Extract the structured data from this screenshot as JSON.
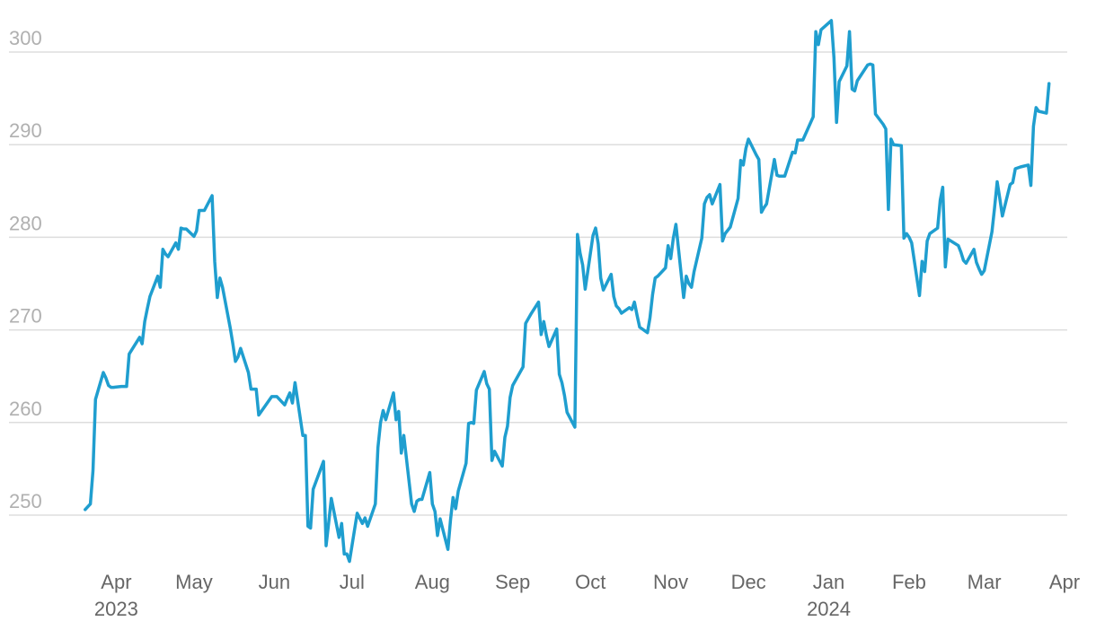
{
  "chart_data": {
    "type": "line",
    "title": "",
    "xlabel": "",
    "ylabel": "",
    "ylim": [
      244,
      304
    ],
    "xlim": [
      "2023-03-01",
      "2024-04-01"
    ],
    "grid": true,
    "legend": "none",
    "y_ticks": [
      250,
      260,
      270,
      280,
      290,
      300
    ],
    "x_ticks": [
      {
        "date": "2023-04-01",
        "label": "Apr",
        "year": "2023"
      },
      {
        "date": "2023-05-01",
        "label": "May",
        "year": ""
      },
      {
        "date": "2023-06-01",
        "label": "Jun",
        "year": ""
      },
      {
        "date": "2023-07-01",
        "label": "Jul",
        "year": ""
      },
      {
        "date": "2023-08-01",
        "label": "Aug",
        "year": ""
      },
      {
        "date": "2023-09-01",
        "label": "Sep",
        "year": ""
      },
      {
        "date": "2023-10-01",
        "label": "Oct",
        "year": ""
      },
      {
        "date": "2023-11-01",
        "label": "Nov",
        "year": ""
      },
      {
        "date": "2023-12-01",
        "label": "Dec",
        "year": ""
      },
      {
        "date": "2024-01-01",
        "label": "Jan",
        "year": "2024"
      },
      {
        "date": "2024-02-01",
        "label": "Feb",
        "year": ""
      },
      {
        "date": "2024-03-01",
        "label": "Mar",
        "year": ""
      },
      {
        "date": "2024-04-01",
        "label": "Apr",
        "year": ""
      }
    ],
    "series": [
      {
        "color": "#1f9ecf",
        "x": [
          "2023-03-20",
          "2023-03-22",
          "2023-03-23",
          "2023-03-24",
          "2023-03-27",
          "2023-03-28",
          "2023-03-29",
          "2023-03-30",
          "2023-03-31",
          "2023-04-03",
          "2023-04-04",
          "2023-04-05",
          "2023-04-06",
          "2023-04-10",
          "2023-04-11",
          "2023-04-12",
          "2023-04-13",
          "2023-04-14",
          "2023-04-17",
          "2023-04-18",
          "2023-04-19",
          "2023-04-20",
          "2023-04-21",
          "2023-04-24",
          "2023-04-25",
          "2023-04-26",
          "2023-04-27",
          "2023-04-28",
          "2023-05-01",
          "2023-05-02",
          "2023-05-03",
          "2023-05-04",
          "2023-05-05",
          "2023-05-08",
          "2023-05-09",
          "2023-05-10",
          "2023-05-11",
          "2023-05-12",
          "2023-05-15",
          "2023-05-16",
          "2023-05-17",
          "2023-05-18",
          "2023-05-19",
          "2023-05-22",
          "2023-05-23",
          "2023-05-24",
          "2023-05-25",
          "2023-05-26",
          "2023-05-30",
          "2023-05-31",
          "2023-06-01",
          "2023-06-02",
          "2023-06-05",
          "2023-06-06",
          "2023-06-07",
          "2023-06-08",
          "2023-06-09",
          "2023-06-12",
          "2023-06-13",
          "2023-06-14",
          "2023-06-15",
          "2023-06-16",
          "2023-06-20",
          "2023-06-21",
          "2023-06-22",
          "2023-06-23",
          "2023-06-26",
          "2023-06-27",
          "2023-06-28",
          "2023-06-29",
          "2023-06-30",
          "2023-07-03",
          "2023-07-05",
          "2023-07-06",
          "2023-07-07",
          "2023-07-10",
          "2023-07-11",
          "2023-07-12",
          "2023-07-13",
          "2023-07-14",
          "2023-07-17",
          "2023-07-18",
          "2023-07-19",
          "2023-07-20",
          "2023-07-21",
          "2023-07-24",
          "2023-07-25",
          "2023-07-26",
          "2023-07-27",
          "2023-07-28",
          "2023-07-31",
          "2023-08-01",
          "2023-08-02",
          "2023-08-03",
          "2023-08-04",
          "2023-08-07",
          "2023-08-08",
          "2023-08-09",
          "2023-08-10",
          "2023-08-11",
          "2023-08-14",
          "2023-08-15",
          "2023-08-16",
          "2023-08-17",
          "2023-08-18",
          "2023-08-21",
          "2023-08-22",
          "2023-08-23",
          "2023-08-24",
          "2023-08-25",
          "2023-08-28",
          "2023-08-29",
          "2023-08-30",
          "2023-08-31",
          "2023-09-01",
          "2023-09-05",
          "2023-09-06",
          "2023-09-07",
          "2023-09-08",
          "2023-09-11",
          "2023-09-12",
          "2023-09-13",
          "2023-09-14",
          "2023-09-15",
          "2023-09-18",
          "2023-09-19",
          "2023-09-20",
          "2023-09-21",
          "2023-09-22",
          "2023-09-25",
          "2023-09-26",
          "2023-09-27",
          "2023-09-28",
          "2023-09-29",
          "2023-10-02",
          "2023-10-03",
          "2023-10-04",
          "2023-10-05",
          "2023-10-06",
          "2023-10-09",
          "2023-10-10",
          "2023-10-11",
          "2023-10-12",
          "2023-10-13",
          "2023-10-16",
          "2023-10-17",
          "2023-10-18",
          "2023-10-19",
          "2023-10-20",
          "2023-10-23",
          "2023-10-24",
          "2023-10-25",
          "2023-10-26",
          "2023-10-27",
          "2023-10-30",
          "2023-10-31",
          "2023-11-01",
          "2023-11-02",
          "2023-11-03",
          "2023-11-06",
          "2023-11-07",
          "2023-11-08",
          "2023-11-09",
          "2023-11-10",
          "2023-11-13",
          "2023-11-14",
          "2023-11-15",
          "2023-11-16",
          "2023-11-17",
          "2023-11-20",
          "2023-11-21",
          "2023-11-22",
          "2023-11-24",
          "2023-11-27",
          "2023-11-28",
          "2023-11-29",
          "2023-11-30",
          "2023-12-01",
          "2023-12-04",
          "2023-12-05",
          "2023-12-06",
          "2023-12-07",
          "2023-12-08",
          "2023-12-11",
          "2023-12-12",
          "2023-12-13",
          "2023-12-14",
          "2023-12-15",
          "2023-12-18",
          "2023-12-19",
          "2023-12-20",
          "2023-12-21",
          "2023-12-22",
          "2023-12-26",
          "2023-12-27",
          "2023-12-28",
          "2023-12-29",
          "2024-01-02",
          "2024-01-03",
          "2024-01-04",
          "2024-01-05",
          "2024-01-08",
          "2024-01-09",
          "2024-01-10",
          "2024-01-11",
          "2024-01-12",
          "2024-01-16",
          "2024-01-17",
          "2024-01-18",
          "2024-01-19",
          "2024-01-22",
          "2024-01-23",
          "2024-01-24",
          "2024-01-25",
          "2024-01-26",
          "2024-01-29",
          "2024-01-30",
          "2024-01-31",
          "2024-02-01",
          "2024-02-02",
          "2024-02-05",
          "2024-02-06",
          "2024-02-07",
          "2024-02-08",
          "2024-02-09",
          "2024-02-12",
          "2024-02-13",
          "2024-02-14",
          "2024-02-15",
          "2024-02-16",
          "2024-02-20",
          "2024-02-21",
          "2024-02-22",
          "2024-02-23",
          "2024-02-26",
          "2024-02-27",
          "2024-02-28",
          "2024-02-29",
          "2024-03-01",
          "2024-03-04",
          "2024-03-05",
          "2024-03-06",
          "2024-03-07",
          "2024-03-08",
          "2024-03-11",
          "2024-03-12",
          "2024-03-13",
          "2024-03-14",
          "2024-03-15",
          "2024-03-18",
          "2024-03-19",
          "2024-03-20",
          "2024-03-21",
          "2024-03-22",
          "2024-03-25",
          "2024-03-26"
        ],
        "y": [
          250.6,
          251.2,
          254.8,
          262.5,
          265.4,
          264.8,
          264,
          263.8,
          263.8,
          263.9,
          263.9,
          263.9,
          267.4,
          269.2,
          268.5,
          270.9,
          272.3,
          273.6,
          275.8,
          274.6,
          278.7,
          278.2,
          277.9,
          279.4,
          278.7,
          281.0,
          280.9,
          280.9,
          280.1,
          280.7,
          282.9,
          282.9,
          282.9,
          284.5,
          277.4,
          273.5,
          275.6,
          274.6,
          270.2,
          268.5,
          266.6,
          267.1,
          268.0,
          265.4,
          263.6,
          263.6,
          263.6,
          260.8,
          262.4,
          262.8,
          262.8,
          262.8,
          261.9,
          262.6,
          263.2,
          262.1,
          264.3,
          258.6,
          258.6,
          248.8,
          248.6,
          252.8,
          255.8,
          246.7,
          249.2,
          251.8,
          247.6,
          249.1,
          245.8,
          245.8,
          245.0,
          250.2,
          249.1,
          249.7,
          248.8,
          251.2,
          257.3,
          260.0,
          261.3,
          260.3,
          263.2,
          260.3,
          261.2,
          256.7,
          258.6,
          251.2,
          250.4,
          251.5,
          251.7,
          251.7,
          254.6,
          251.2,
          250.4,
          247.8,
          249.6,
          246.3,
          249.5,
          251.9,
          250.7,
          252.6,
          255.6,
          259.9,
          260.0,
          259.9,
          263.5,
          265.5,
          264.2,
          263.6,
          255.9,
          256.9,
          255.3,
          258.4,
          259.6,
          262.7,
          264.0,
          266.0,
          270.7,
          271.2,
          271.7,
          273.0,
          269.5,
          270.9,
          269.4,
          268.2,
          270.1,
          265.2,
          264.3,
          262.9,
          261.1,
          259.5,
          280.3,
          278.3,
          277.0,
          274.4,
          280.2,
          281.0,
          279.3,
          275.6,
          274.3,
          276.0,
          273.6,
          272.6,
          272.3,
          271.8,
          272.4,
          272.2,
          273.0,
          271.6,
          270.3,
          269.7,
          271.3,
          273.8,
          275.6,
          275.8,
          276.7,
          279.1,
          277.7,
          279.9,
          281.4,
          273.5,
          275.8,
          275.0,
          274.6,
          276.3,
          279.9,
          283.6,
          284.3,
          284.6,
          283.6,
          285.7,
          279.6,
          280.4,
          281.1,
          284.2,
          288.3,
          287.8,
          289.6,
          290.6,
          288.9,
          288.4,
          282.7,
          283.2,
          283.6,
          288.4,
          286.7,
          286.6,
          286.6,
          286.6,
          289.2,
          289.1,
          290.5,
          290.5,
          290.5,
          293.0,
          302.2,
          300.8,
          302.4,
          303.4,
          299.4,
          292.4,
          296.8,
          298.5,
          302.2,
          296.0,
          295.8,
          296.9,
          298.6,
          298.7,
          298.6,
          293.3,
          292.2,
          291.7,
          283.0,
          290.6,
          290.0,
          289.9,
          279.9,
          280.4,
          280.0,
          279.4,
          273.7,
          277.4,
          276.3,
          279.6,
          280.4,
          281.0,
          284.0,
          285.4,
          276.8,
          279.8,
          279.1,
          278.4,
          277.5,
          277.2,
          278.7,
          277.3,
          276.6,
          276.0,
          276.4,
          280.6,
          283.2,
          286.0,
          284.2,
          282.3,
          285.7,
          285.9,
          287.4,
          287.5,
          287.6,
          287.8,
          285.6,
          292.0,
          294.0,
          293.6,
          293.4,
          296.6
        ]
      }
    ]
  }
}
